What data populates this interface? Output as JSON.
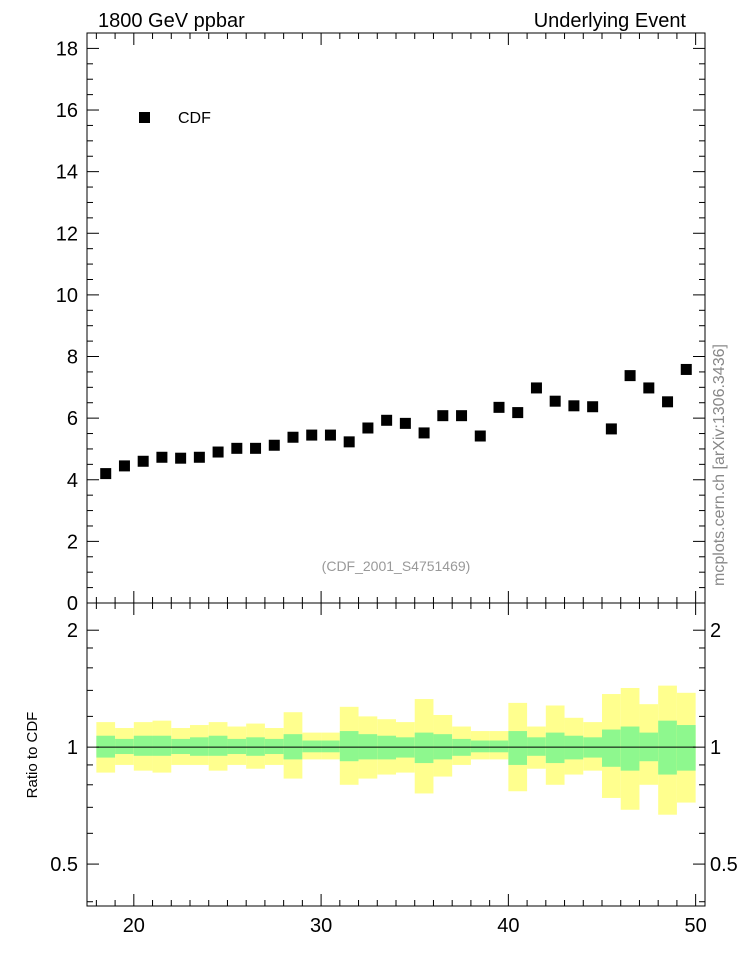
{
  "header": {
    "left": "1800 GeV ppbar",
    "right": "Underlying Event"
  },
  "watermark": "mcplots.cern.ch [arXiv:1306.3436]",
  "analysis_id": "(CDF_2001_S4751469)",
  "legend": {
    "label": "CDF",
    "placement": "top-left"
  },
  "ratio_ylabel": "Ratio to CDF",
  "colors": {
    "band_inner": "#8ef88e",
    "band_outer": "#ffff8e",
    "marker": "#000000",
    "axes": "#000000"
  },
  "chart_data": [
    {
      "type": "scatter",
      "ylim": [
        0,
        18.5
      ],
      "xlim": [
        17.5,
        50.5
      ],
      "y_ticks": [
        0,
        2,
        4,
        6,
        8,
        10,
        12,
        14,
        16,
        18
      ],
      "series": [
        {
          "name": "CDF",
          "x": [
            18.5,
            19.5,
            20.5,
            21.5,
            22.5,
            23.5,
            24.5,
            25.5,
            26.5,
            27.5,
            28.5,
            29.5,
            30.5,
            31.5,
            32.5,
            33.5,
            34.5,
            35.5,
            36.5,
            37.5,
            38.5,
            39.5,
            40.5,
            41.5,
            42.5,
            43.5,
            44.5,
            45.5,
            46.5,
            47.5,
            48.5,
            49.5
          ],
          "y": [
            4.2,
            4.45,
            4.6,
            4.73,
            4.7,
            4.73,
            4.9,
            5.02,
            5.02,
            5.12,
            5.38,
            5.45,
            5.45,
            5.23,
            5.68,
            5.93,
            5.83,
            5.52,
            6.08,
            6.08,
            5.42,
            6.35,
            6.18,
            6.98,
            6.55,
            6.4,
            6.37,
            5.65,
            7.38,
            6.98,
            6.53,
            7.58
          ]
        }
      ]
    },
    {
      "type": "area",
      "ylabel": "Ratio to CDF",
      "ylim": [
        0.39,
        2.35
      ],
      "log_y": true,
      "xlim": [
        17.5,
        50.5
      ],
      "x_ticks": [
        20,
        30,
        40,
        50
      ],
      "y_ticks": [
        0.5,
        1,
        2
      ],
      "bin_edges": [
        18,
        19,
        20,
        21,
        22,
        23,
        24,
        25,
        26,
        27,
        28,
        29,
        30,
        31,
        32,
        33,
        34,
        35,
        36,
        37,
        38,
        39,
        40,
        41,
        42,
        43,
        44,
        45,
        46,
        47,
        48,
        49,
        50
      ],
      "reference": 1,
      "inner_band": {
        "low": [
          0.94,
          0.96,
          0.95,
          0.95,
          0.96,
          0.95,
          0.95,
          0.96,
          0.95,
          0.96,
          0.93,
          0.97,
          0.97,
          0.92,
          0.93,
          0.93,
          0.94,
          0.91,
          0.93,
          0.95,
          0.97,
          0.97,
          0.9,
          0.95,
          0.91,
          0.93,
          0.94,
          0.89,
          0.87,
          0.92,
          0.85,
          0.87
        ],
        "high": [
          1.07,
          1.05,
          1.07,
          1.07,
          1.05,
          1.06,
          1.07,
          1.05,
          1.06,
          1.05,
          1.08,
          1.04,
          1.04,
          1.1,
          1.08,
          1.07,
          1.06,
          1.09,
          1.08,
          1.05,
          1.04,
          1.04,
          1.1,
          1.06,
          1.09,
          1.07,
          1.06,
          1.11,
          1.13,
          1.09,
          1.17,
          1.14
        ]
      },
      "outer_band": {
        "low": [
          0.86,
          0.9,
          0.87,
          0.86,
          0.9,
          0.9,
          0.87,
          0.9,
          0.88,
          0.9,
          0.83,
          0.93,
          0.93,
          0.8,
          0.83,
          0.85,
          0.86,
          0.76,
          0.84,
          0.9,
          0.93,
          0.93,
          0.77,
          0.88,
          0.8,
          0.85,
          0.87,
          0.74,
          0.69,
          0.8,
          0.67,
          0.72
        ],
        "high": [
          1.16,
          1.12,
          1.16,
          1.17,
          1.12,
          1.14,
          1.16,
          1.13,
          1.15,
          1.12,
          1.23,
          1.09,
          1.09,
          1.27,
          1.2,
          1.18,
          1.16,
          1.33,
          1.21,
          1.13,
          1.1,
          1.1,
          1.3,
          1.13,
          1.28,
          1.19,
          1.16,
          1.37,
          1.42,
          1.29,
          1.44,
          1.38
        ]
      }
    }
  ]
}
